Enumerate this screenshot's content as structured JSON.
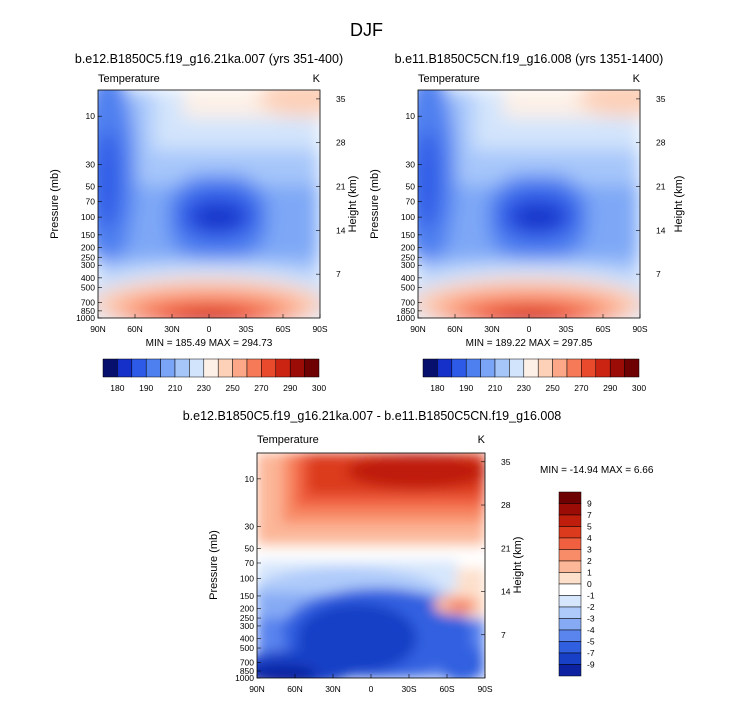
{
  "figure": {
    "title": "DJF"
  },
  "chart_data": [
    {
      "type": "heatmap",
      "title": "b.e12.B1850C5.f19_g16.21ka.007 (yrs 351-400)",
      "variable_label": "Temperature",
      "units": "K",
      "ylabel": "Pressure (mb)",
      "ylabel_right": "Height (km)",
      "x_ticks": [
        "90N",
        "60N",
        "30N",
        "0",
        "30S",
        "60S",
        "90S"
      ],
      "y_ticks": [
        "10",
        "30",
        "50",
        "70",
        "100",
        "150",
        "200",
        "250",
        "300",
        "400",
        "500",
        "700",
        "850",
        "1000"
      ],
      "y_ticks_right": [
        "35",
        "28",
        "21",
        "14",
        "7"
      ],
      "stats_text": "MIN = 185.49   MAX = 294.73",
      "min": 185.49,
      "max": 294.73,
      "colorbar_ticks": [
        "180",
        "190",
        "210",
        "230",
        "250",
        "270",
        "290",
        "300"
      ],
      "colormap": "blue-white-red"
    },
    {
      "type": "heatmap",
      "title": "b.e11.B1850C5CN.f19_g16.008 (yrs 1351-1400)",
      "variable_label": "Temperature",
      "units": "K",
      "ylabel": "Pressure (mb)",
      "ylabel_right": "Height (km)",
      "x_ticks": [
        "90N",
        "60N",
        "30N",
        "0",
        "30S",
        "60S",
        "90S"
      ],
      "y_ticks": [
        "10",
        "30",
        "50",
        "70",
        "100",
        "150",
        "200",
        "250",
        "300",
        "400",
        "500",
        "700",
        "850",
        "1000"
      ],
      "y_ticks_right": [
        "35",
        "28",
        "21",
        "14",
        "7"
      ],
      "stats_text": "MIN = 189.22   MAX = 297.85",
      "min": 189.22,
      "max": 297.85,
      "colorbar_ticks": [
        "180",
        "190",
        "210",
        "230",
        "250",
        "270",
        "290",
        "300"
      ],
      "colormap": "blue-white-red"
    },
    {
      "type": "heatmap",
      "title": "b.e12.B1850C5.f19_g16.21ka.007 - b.e11.B1850C5CN.f19_g16.008",
      "variable_label": "Temperature",
      "units": "K",
      "ylabel": "Pressure (mb)",
      "ylabel_right": "Height (km)",
      "x_ticks": [
        "90N",
        "60N",
        "30N",
        "0",
        "30S",
        "60S",
        "90S"
      ],
      "y_ticks": [
        "10",
        "30",
        "50",
        "70",
        "100",
        "150",
        "200",
        "250",
        "300",
        "400",
        "500",
        "700",
        "850",
        "1000"
      ],
      "y_ticks_right": [
        "35",
        "28",
        "21",
        "14",
        "7"
      ],
      "stats_text": "MIN = -14.94  MAX =   6.66",
      "min": -14.94,
      "max": 6.66,
      "colorbar_ticks": [
        "9",
        "7",
        "5",
        "4",
        "3",
        "2",
        "1",
        "0",
        "-1",
        "-2",
        "-3",
        "-4",
        "-5",
        "-7",
        "-9"
      ],
      "colormap": "blue-white-red"
    }
  ],
  "colors": {
    "cb_temperature": [
      "#08106e",
      "#1530c8",
      "#2d5ae6",
      "#4f80f0",
      "#7aa4f6",
      "#a6c6fa",
      "#d2e4fc",
      "#fdf0e6",
      "#fdd0b8",
      "#fca888",
      "#f67a58",
      "#ea4a2c",
      "#cc2412",
      "#9c0c06",
      "#6e0202"
    ],
    "cb_diff": [
      "#6e0202",
      "#9c0c06",
      "#c01e0c",
      "#dc3a1c",
      "#f06040",
      "#f88c68",
      "#fcb698",
      "#fde0cc",
      "#ffffff",
      "#d6e6fc",
      "#aecafa",
      "#86aaf4",
      "#5a84ee",
      "#3060e0",
      "#1840c6",
      "#0c22a0"
    ]
  }
}
